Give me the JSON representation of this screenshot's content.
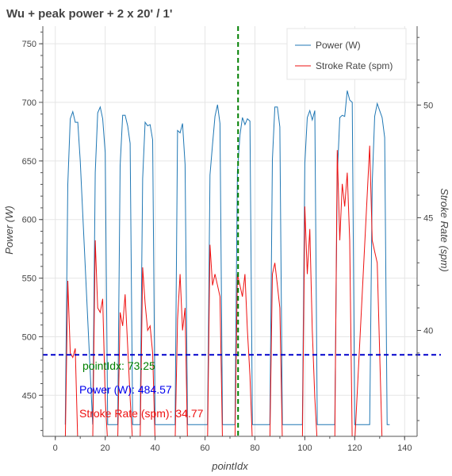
{
  "chart_data": {
    "type": "line",
    "title": "Wu + peak power + 2 x 20' / 1'",
    "xlabel": "pointIdx",
    "ylabel": "Power (W)",
    "y2label": "Stroke Rate (spm)",
    "xlim": [
      -5,
      145
    ],
    "ylim": [
      415,
      765
    ],
    "y2lim": [
      35.3,
      53.5
    ],
    "xticks": [
      0,
      20,
      40,
      60,
      80,
      100,
      120,
      140
    ],
    "yticks": [
      450,
      500,
      550,
      600,
      650,
      700,
      750
    ],
    "y2ticks": [
      40,
      45,
      50
    ],
    "grid": true,
    "legend_position": "top-right",
    "series": [
      {
        "name": "Power (W)",
        "axis": "left",
        "color": "#1f77b4",
        "x": [
          4,
          5,
          6,
          7,
          8,
          9,
          10,
          15,
          16,
          17,
          18,
          19,
          20,
          21,
          25,
          26,
          27,
          28,
          29,
          30,
          31,
          34,
          35,
          36,
          37,
          38,
          39,
          40,
          48,
          49,
          50,
          51,
          52,
          53,
          61,
          62,
          63,
          64,
          65,
          66,
          67,
          72,
          73,
          74,
          75,
          76,
          77,
          78,
          79,
          86,
          87,
          88,
          89,
          90,
          91,
          92,
          99,
          100,
          101,
          102,
          103,
          104,
          105,
          112,
          113,
          114,
          115,
          116,
          117,
          118,
          119,
          120,
          126,
          127,
          128,
          129,
          130,
          131,
          132,
          133,
          134
        ],
        "values": [
          425,
          630,
          686,
          692,
          683,
          683,
          650,
          425,
          640,
          691,
          696,
          686,
          657,
          425,
          425,
          646,
          689,
          689,
          680,
          665,
          425,
          425,
          635,
          683,
          680,
          681,
          668,
          425,
          425,
          676,
          674,
          682,
          647,
          425,
          425,
          638,
          664,
          688,
          698,
          682,
          425,
          425,
          641,
          672,
          687,
          681,
          686,
          684,
          425,
          425,
          651,
          696,
          696,
          679,
          425,
          425,
          425,
          648,
          687,
          693,
          685,
          693,
          425,
          425,
          637,
          687,
          689,
          688,
          710,
          702,
          700,
          425,
          425,
          631,
          688,
          699,
          693,
          687,
          670,
          425,
          425
        ]
      },
      {
        "name": "Stroke Rate (spm)",
        "axis": "right",
        "color": "#ee1111",
        "x": [
          4,
          5,
          6,
          7,
          8,
          9,
          15,
          16,
          17,
          18,
          19,
          20,
          21,
          25,
          26,
          27,
          28,
          29,
          30,
          31,
          34,
          35,
          36,
          37,
          38,
          39,
          40,
          48,
          49,
          50,
          51,
          52,
          53,
          61,
          62,
          63,
          64,
          65,
          66,
          67,
          72,
          73,
          74,
          75,
          76,
          77,
          78,
          79,
          86,
          87,
          88,
          89,
          90,
          91,
          92,
          99,
          100,
          101,
          102,
          103,
          104,
          105,
          112,
          113,
          114,
          115,
          116,
          117,
          118,
          119,
          120,
          126,
          127,
          128,
          129,
          130,
          131,
          132,
          133,
          134
        ],
        "values": [
          35.0,
          42.2,
          39.0,
          38.8,
          39.2,
          35.0,
          35.0,
          44.0,
          41.0,
          40.8,
          41.4,
          37.0,
          35.0,
          35.0,
          40.8,
          40.2,
          41.6,
          39.3,
          37.0,
          35.0,
          35.0,
          42.8,
          41.2,
          40.0,
          40.2,
          39.0,
          35.0,
          35.0,
          40.5,
          42.5,
          40.0,
          41.0,
          35.0,
          35.0,
          43.8,
          42.0,
          42.5,
          42.0,
          41.5,
          35.0,
          35.0,
          42.5,
          42.0,
          41.5,
          42.5,
          40.0,
          38.0,
          35.0,
          35.0,
          42.5,
          43.0,
          42.0,
          41.0,
          35.0,
          35.0,
          35.0,
          45.5,
          42.5,
          44.5,
          40.0,
          37.0,
          35.0,
          35.0,
          48.0,
          44.0,
          46.5,
          45.5,
          47.0,
          44.0,
          35.0,
          35.0,
          48.2,
          44.0,
          43.5,
          43.0,
          39.0,
          35.0,
          35.0,
          35.0,
          35.0
        ]
      }
    ],
    "crosshair": {
      "x": 73.25,
      "y": 484.57
    },
    "annotations": [
      {
        "label": "pointIdx:  73.25",
        "color": "#008000"
      },
      {
        "label": "Power (W): 484.57",
        "color": "#0000ee"
      },
      {
        "label": "Stroke Rate (spm):  34.77",
        "color": "#ee1111"
      }
    ]
  }
}
